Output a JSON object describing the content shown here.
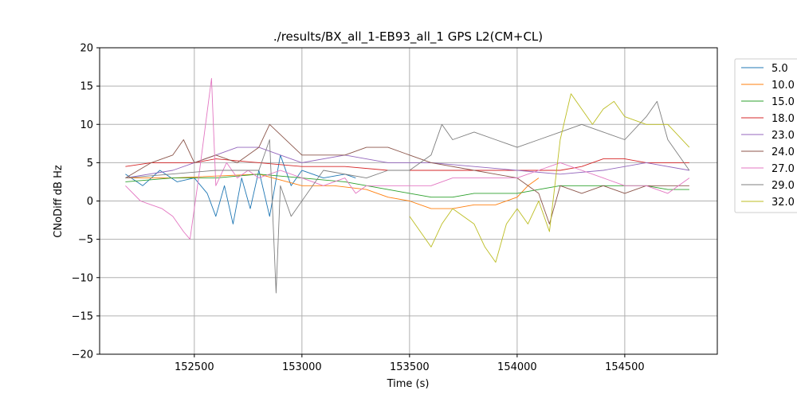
{
  "chart_data": {
    "type": "line",
    "title": "./results/BX_all_1-EB93_all_1 GPS L2(CM+CL)",
    "xlabel": "Time (s)",
    "ylabel": "CNoDiff dB Hz",
    "xlim": [
      152060,
      154930
    ],
    "ylim": [
      -20,
      20
    ],
    "xticks": [
      152500,
      153000,
      153500,
      154000,
      154500
    ],
    "yticks": [
      -20,
      -15,
      -10,
      -5,
      0,
      5,
      10,
      15,
      20
    ],
    "xtick_labels": [
      "152500",
      "153000",
      "153500",
      "154000",
      "154500"
    ],
    "ytick_labels": [
      "−20",
      "−15",
      "−10",
      "−5",
      "0",
      "5",
      "10",
      "15",
      "20"
    ],
    "grid": true,
    "legend_position": "outside-right",
    "series": [
      {
        "name": "5.0",
        "color": "#1f77b4",
        "x": [
          152180,
          152260,
          152340,
          152420,
          152500,
          152560,
          152600,
          152640,
          152680,
          152720,
          152760,
          152800,
          152850,
          152900,
          152950,
          153000,
          153100,
          153200,
          153250
        ],
        "y": [
          3.5,
          2,
          4,
          2.5,
          3,
          1,
          -2,
          2,
          -3,
          3,
          -1,
          4,
          -2,
          6,
          2,
          4,
          3,
          3.5,
          3
        ]
      },
      {
        "name": "10.0",
        "color": "#ff7f0e",
        "x": [
          152180,
          152400,
          152800,
          153000,
          153150,
          153300,
          153400,
          153500,
          153600,
          153700,
          153800,
          153900,
          154000,
          154050,
          154100
        ],
        "y": [
          3,
          3,
          3.5,
          2,
          2,
          1.5,
          0.5,
          0,
          -1,
          -1,
          -0.5,
          -0.5,
          0.5,
          2,
          3
        ]
      },
      {
        "name": "15.0",
        "color": "#2ca02c",
        "x": [
          152180,
          152400,
          152600,
          152800,
          153000,
          153200,
          153400,
          153500,
          153600,
          153700,
          153800,
          153900,
          154000,
          154100,
          154200,
          154300,
          154400,
          154500,
          154600,
          154700,
          154800
        ],
        "y": [
          2.5,
          3,
          3,
          3.5,
          3,
          2.5,
          1.5,
          1,
          0.5,
          0.5,
          1,
          1,
          1,
          1.5,
          2,
          2,
          2,
          2,
          2,
          1.5,
          1.5
        ]
      },
      {
        "name": "18.0",
        "color": "#d62728",
        "x": [
          152180,
          152300,
          152400,
          152500,
          152600,
          152800,
          153000,
          153200,
          153400,
          153600,
          153800,
          154000,
          154200,
          154300,
          154400,
          154500,
          154600,
          154700,
          154800
        ],
        "y": [
          4.5,
          5,
          5,
          5,
          5.5,
          5,
          4.5,
          4.5,
          4,
          4,
          4,
          4,
          4,
          4.5,
          5.5,
          5.5,
          5,
          5,
          5
        ]
      },
      {
        "name": "23.0",
        "color": "#9467bd",
        "x": [
          152180,
          152400,
          152500,
          152600,
          152700,
          152800,
          152900,
          153000,
          153200,
          153400,
          153600,
          153800,
          154000,
          154200,
          154400,
          154600,
          154800
        ],
        "y": [
          3,
          4,
          5,
          6,
          7,
          7,
          6,
          5,
          6,
          5,
          5,
          4.5,
          4,
          3.5,
          4,
          5,
          4
        ]
      },
      {
        "name": "24.0",
        "color": "#8c564b",
        "x": [
          152180,
          152300,
          152400,
          152450,
          152500,
          152600,
          152700,
          152800,
          152850,
          153000,
          153200,
          153300,
          153400,
          153500,
          153600,
          153800,
          153900,
          154000,
          154100,
          154150,
          154200,
          154300,
          154400,
          154500,
          154600,
          154700,
          154800
        ],
        "y": [
          3,
          5,
          6,
          8,
          5,
          6,
          5,
          7,
          10,
          6,
          6,
          7,
          7,
          6,
          5,
          4,
          3.5,
          3,
          1,
          -3,
          2,
          1,
          2,
          1,
          2,
          2,
          2
        ]
      },
      {
        "name": "27.0",
        "color": "#e377c2",
        "x": [
          152180,
          152250,
          152300,
          152350,
          152400,
          152450,
          152480,
          152520,
          152580,
          152600,
          152650,
          152700,
          152750,
          152800,
          152900,
          153000,
          153100,
          153200,
          153250,
          153300,
          153400,
          153500,
          153600,
          153700,
          153800,
          153900,
          154000,
          154100,
          154200,
          154300,
          154400,
          154500,
          154600,
          154700,
          154800
        ],
        "y": [
          2,
          0,
          -0.5,
          -1,
          -2,
          -4,
          -5,
          3,
          16,
          2,
          5,
          3,
          4,
          3,
          4,
          3,
          2,
          3,
          1,
          2,
          2,
          2,
          2,
          3,
          3,
          3,
          3,
          4,
          5,
          4,
          3,
          2,
          2,
          1,
          3
        ]
      },
      {
        "name": "29.0",
        "color": "#7f7f7f",
        "x": [
          152180,
          152600,
          152800,
          152850,
          152880,
          152900,
          152950,
          153000,
          153100,
          153300,
          153400,
          153500,
          153600,
          153650,
          153700,
          153800,
          153900,
          154000,
          154100,
          154200,
          154300,
          154400,
          154500,
          154600,
          154650,
          154700,
          154800
        ],
        "y": [
          3,
          4,
          4,
          8,
          -12,
          2,
          -2,
          0,
          4,
          3,
          4,
          4,
          6,
          10,
          8,
          9,
          8,
          7,
          8,
          9,
          10,
          9,
          8,
          11,
          13,
          8,
          4
        ]
      },
      {
        "name": "32.0",
        "color": "#bcbd22",
        "x": [
          153500,
          153550,
          153600,
          153650,
          153700,
          153800,
          153850,
          153900,
          153950,
          154000,
          154050,
          154100,
          154150,
          154200,
          154250,
          154300,
          154350,
          154400,
          154450,
          154500,
          154600,
          154700,
          154800
        ],
        "y": [
          -2,
          -4,
          -6,
          -3,
          -1,
          -3,
          -6,
          -8,
          -3,
          -1,
          -3,
          0,
          -4,
          8,
          14,
          12,
          10,
          12,
          13,
          11,
          10,
          10,
          7
        ]
      }
    ]
  }
}
